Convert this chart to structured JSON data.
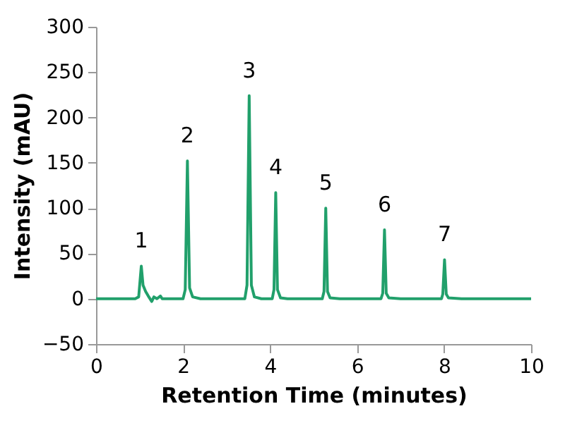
{
  "chart_data": {
    "type": "line",
    "xlabel": "Retention Time (minutes)",
    "ylabel": "Intensity (mAU)",
    "xlim": [
      0,
      10
    ],
    "xticks": [
      0,
      2,
      4,
      6,
      8,
      10
    ],
    "ylim": [
      -50,
      300
    ],
    "yticks": [
      -50,
      0,
      50,
      100,
      150,
      200,
      250,
      300
    ],
    "grid": false,
    "marker": "none",
    "line_style": "solid",
    "series": [
      {
        "color": "#21a06b",
        "x": [
          0,
          0.9,
          0.98,
          1.04,
          1.08,
          1.14,
          1.2,
          1.28,
          1.33,
          1.4,
          1.48,
          1.52,
          1.6,
          2.0,
          2.05,
          2.1,
          2.15,
          2.22,
          2.4,
          3.42,
          3.47,
          3.52,
          3.57,
          3.64,
          3.8,
          4.05,
          4.09,
          4.13,
          4.17,
          4.24,
          4.4,
          5.2,
          5.24,
          5.28,
          5.32,
          5.38,
          5.6,
          6.55,
          6.59,
          6.63,
          6.67,
          6.73,
          7.0,
          7.94,
          7.97,
          8.01,
          8.05,
          8.1,
          8.4,
          10
        ],
        "values": [
          0,
          0,
          2,
          36,
          15,
          8,
          3,
          -3,
          2,
          0,
          3,
          0,
          0,
          0,
          10,
          152,
          12,
          2,
          0,
          0,
          15,
          224,
          15,
          2,
          0,
          0,
          10,
          117,
          10,
          1,
          0,
          0,
          8,
          100,
          8,
          1,
          0,
          0,
          6,
          76,
          6,
          1,
          0,
          0,
          5,
          43,
          5,
          1,
          0,
          0
        ]
      }
    ],
    "annotations": [
      {
        "text": "1",
        "x": 1.04,
        "y": 36
      },
      {
        "text": "2",
        "x": 2.1,
        "y": 152
      },
      {
        "text": "3",
        "x": 3.52,
        "y": 224
      },
      {
        "text": "4",
        "x": 4.13,
        "y": 117
      },
      {
        "text": "5",
        "x": 5.28,
        "y": 100
      },
      {
        "text": "6",
        "x": 6.63,
        "y": 76
      },
      {
        "text": "7",
        "x": 8.01,
        "y": 43
      }
    ]
  }
}
